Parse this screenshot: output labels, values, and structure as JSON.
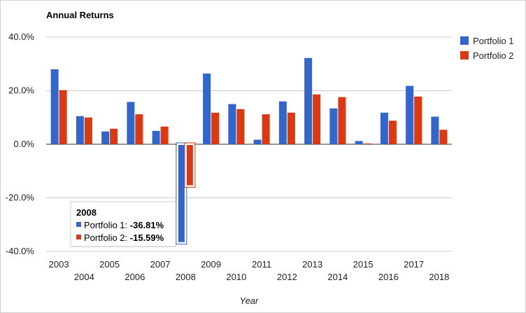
{
  "chart_data": {
    "type": "bar",
    "title": "Annual Returns",
    "xlabel": "Year",
    "ylabel": "",
    "ylim": [
      -40,
      40
    ],
    "yticks": [
      "40.0%",
      "20.0%",
      "0.0%",
      "-20.0%",
      "-40.0%"
    ],
    "ytick_values": [
      40,
      20,
      0,
      -20,
      -40
    ],
    "categories": [
      "2003",
      "2004",
      "2005",
      "2006",
      "2007",
      "2008",
      "2009",
      "2010",
      "2011",
      "2012",
      "2013",
      "2014",
      "2015",
      "2016",
      "2017",
      "2018"
    ],
    "series": [
      {
        "name": "Portfolio 1",
        "color": "#3366cc",
        "values": [
          28.0,
          10.5,
          4.8,
          15.8,
          5.0,
          -36.81,
          26.4,
          15.0,
          1.7,
          16.0,
          32.2,
          13.4,
          1.2,
          11.8,
          21.8,
          10.3
        ]
      },
      {
        "name": "Portfolio 2",
        "color": "#dc3912",
        "values": [
          20.2,
          10.0,
          5.8,
          11.2,
          6.6,
          -15.59,
          11.8,
          13.1,
          11.2,
          11.8,
          18.6,
          17.6,
          0.3,
          8.8,
          17.8,
          5.4
        ]
      }
    ],
    "grid": true,
    "legend": "right",
    "tooltip": {
      "title": "2008",
      "rows": [
        {
          "label": "Portfolio 1:",
          "value": "-36.81%"
        },
        {
          "label": "Portfolio 2:",
          "value": "-15.59%"
        }
      ]
    }
  }
}
